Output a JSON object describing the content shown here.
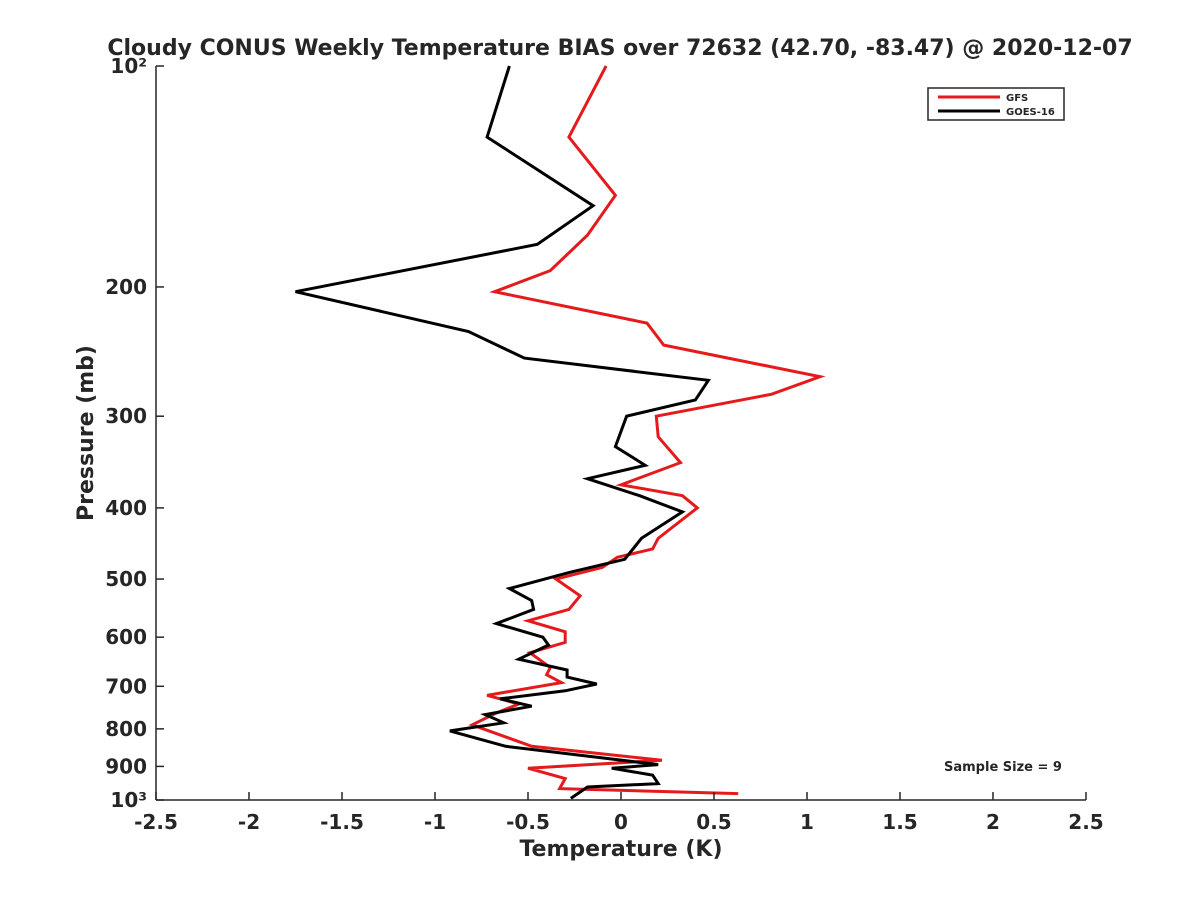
{
  "chart_data": {
    "type": "line",
    "title": "Cloudy CONUS Weekly Temperature BIAS over 72632 (42.70, -83.47) @ 2020-12-07",
    "xlabel": "Temperature (K)",
    "ylabel": "Pressure (mb)",
    "xlim": [
      -2.5,
      2.5
    ],
    "ylim": [
      100,
      1000
    ],
    "y_scale": "log",
    "y_reversed": true,
    "grid": false,
    "legend_position": "top-right",
    "x_ticks": [
      -2.5,
      -2,
      -1.5,
      -1,
      -0.5,
      0,
      0.5,
      1,
      1.5,
      2,
      2.5
    ],
    "x_tick_labels": [
      "-2.5",
      "-2",
      "-1.5",
      "-1",
      "-0.5",
      "0",
      "0.5",
      "1",
      "1.5",
      "2",
      "2.5"
    ],
    "y_ticks": [
      100,
      200,
      300,
      400,
      500,
      600,
      700,
      800,
      900,
      1000
    ],
    "y_tick_labels": [
      "10²",
      "200",
      "300",
      "400",
      "500",
      "600",
      "700",
      "800",
      "900",
      "10³"
    ],
    "annotation": "Sample Size = 9",
    "series": [
      {
        "name": "GFS",
        "color": "#e41a1c",
        "points": [
          [
            -0.08,
            100
          ],
          [
            -0.28,
            125
          ],
          [
            -0.03,
            150
          ],
          [
            -0.18,
            170
          ],
          [
            -0.38,
            190
          ],
          [
            -0.68,
            203
          ],
          [
            0.14,
            224
          ],
          [
            0.23,
            240
          ],
          [
            1.07,
            265
          ],
          [
            0.81,
            280
          ],
          [
            0.19,
            300
          ],
          [
            0.2,
            320
          ],
          [
            0.32,
            347
          ],
          [
            0.0,
            372
          ],
          [
            0.33,
            385
          ],
          [
            0.41,
            400
          ],
          [
            0.2,
            440
          ],
          [
            0.17,
            455
          ],
          [
            -0.02,
            467
          ],
          [
            -0.1,
            482
          ],
          [
            -0.35,
            500
          ],
          [
            -0.22,
            527
          ],
          [
            -0.28,
            550
          ],
          [
            -0.5,
            570
          ],
          [
            -0.3,
            590
          ],
          [
            -0.3,
            610
          ],
          [
            -0.49,
            630
          ],
          [
            -0.38,
            660
          ],
          [
            -0.4,
            675
          ],
          [
            -0.32,
            692
          ],
          [
            -0.72,
            720
          ],
          [
            -0.55,
            740
          ],
          [
            -0.68,
            763
          ],
          [
            -0.8,
            790
          ],
          [
            -0.48,
            845
          ],
          [
            0.22,
            883
          ],
          [
            -0.5,
            905
          ],
          [
            -0.3,
            935
          ],
          [
            -0.33,
            965
          ],
          [
            0.63,
            980
          ]
        ]
      },
      {
        "name": "GOES-16",
        "color": "#000000",
        "points": [
          [
            -0.6,
            100
          ],
          [
            -0.72,
            125
          ],
          [
            -0.15,
            155
          ],
          [
            -0.45,
            175
          ],
          [
            -1.75,
            203
          ],
          [
            -0.82,
            230
          ],
          [
            -0.52,
            250
          ],
          [
            0.47,
            268
          ],
          [
            0.4,
            285
          ],
          [
            0.03,
            300
          ],
          [
            -0.03,
            330
          ],
          [
            0.13,
            350
          ],
          [
            -0.18,
            365
          ],
          [
            0.1,
            385
          ],
          [
            0.33,
            405
          ],
          [
            0.11,
            440
          ],
          [
            0.02,
            470
          ],
          [
            -0.28,
            490
          ],
          [
            -0.6,
            515
          ],
          [
            -0.48,
            535
          ],
          [
            -0.47,
            550
          ],
          [
            -0.67,
            575
          ],
          [
            -0.42,
            600
          ],
          [
            -0.39,
            615
          ],
          [
            -0.55,
            643
          ],
          [
            -0.29,
            665
          ],
          [
            -0.29,
            680
          ],
          [
            -0.13,
            695
          ],
          [
            -0.3,
            710
          ],
          [
            -0.65,
            728
          ],
          [
            -0.48,
            745
          ],
          [
            -0.73,
            765
          ],
          [
            -0.63,
            785
          ],
          [
            -0.92,
            805
          ],
          [
            -0.62,
            845
          ],
          [
            0.2,
            895
          ],
          [
            -0.05,
            905
          ],
          [
            0.17,
            925
          ],
          [
            0.2,
            950
          ],
          [
            -0.18,
            960
          ],
          [
            -0.27,
            995
          ]
        ]
      }
    ]
  }
}
